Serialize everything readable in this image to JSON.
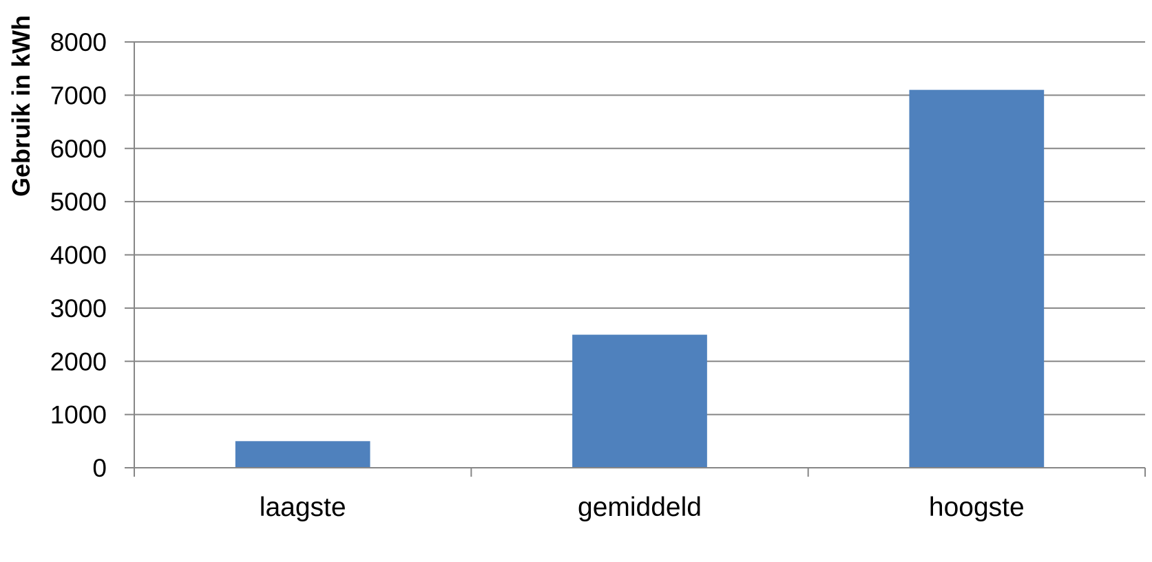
{
  "chart_data": {
    "type": "bar",
    "title": "",
    "xlabel": "",
    "ylabel": "Gebruik in kWh",
    "categories": [
      "laagste",
      "gemiddeld",
      "hoogste"
    ],
    "values": [
      500,
      2500,
      7100
    ],
    "ylim": [
      0,
      8000
    ],
    "yticks": [
      0,
      1000,
      2000,
      3000,
      4000,
      5000,
      6000,
      7000,
      8000
    ],
    "grid": true,
    "legend": "none",
    "bar_color": "#4f81bd",
    "grid_color": "#868686"
  }
}
